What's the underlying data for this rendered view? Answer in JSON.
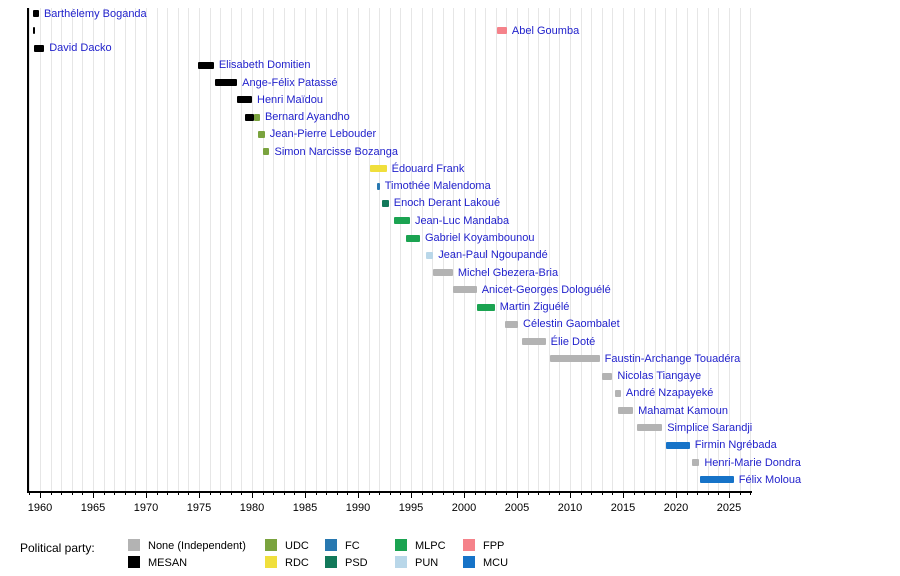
{
  "chart_data": {
    "type": "timeline",
    "title": "",
    "x_axis": {
      "min": 1958.8,
      "max": 2027.2,
      "minor_tick_interval": 1,
      "major_tick_interval": 5,
      "tick_labels": [
        "1960",
        "1965",
        "1970",
        "1975",
        "1980",
        "1985",
        "1990",
        "1995",
        "2000",
        "2005",
        "2010",
        "2015",
        "2020",
        "2025"
      ]
    },
    "grid": "vertical-yearly",
    "legend_position": "bottom",
    "parties": {
      "none": {
        "label": "None (Independent)",
        "color": "#b3b3b3"
      },
      "MESAN": {
        "label": "MESAN",
        "color": "#000000"
      },
      "UDC": {
        "label": "UDC",
        "color": "#7aa33e"
      },
      "RDC": {
        "label": "RDC",
        "color": "#f0df3c"
      },
      "FC": {
        "label": "FC",
        "color": "#2878b0"
      },
      "PSD": {
        "label": "PSD",
        "color": "#12795a"
      },
      "MLPC": {
        "label": "MLPC",
        "color": "#1ba351"
      },
      "PUN": {
        "label": "PUN",
        "color": "#b9d7e9"
      },
      "FPP": {
        "label": "FPP",
        "color": "#f5828a"
      },
      "MCU": {
        "label": "MCU",
        "color": "#1673c8"
      }
    },
    "people": [
      {
        "name": "Barthélemy Boganda",
        "terms": [
          {
            "start": 1959.35,
            "end": 1959.9,
            "party": "MESAN"
          }
        ]
      },
      {
        "name": "Abel Goumba",
        "terms": [
          {
            "start": 1959.35,
            "end": 1959.55,
            "party": "MESAN"
          },
          {
            "start": 2003.1,
            "end": 2004.05,
            "party": "FPP"
          }
        ]
      },
      {
        "name": "David Dacko",
        "terms": [
          {
            "start": 1959.45,
            "end": 1960.4,
            "party": "MESAN"
          }
        ]
      },
      {
        "name": "Elisabeth Domitien",
        "terms": [
          {
            "start": 1974.9,
            "end": 1976.4,
            "party": "MESAN"
          }
        ]
      },
      {
        "name": "Ange-Félix Patassé",
        "terms": [
          {
            "start": 1976.55,
            "end": 1978.6,
            "party": "MESAN"
          }
        ]
      },
      {
        "name": "Henri Maïdou",
        "terms": [
          {
            "start": 1978.6,
            "end": 1980.0,
            "party": "MESAN"
          }
        ]
      },
      {
        "name": "Bernard Ayandho",
        "terms": [
          {
            "start": 1979.35,
            "end": 1980.2,
            "party": "MESAN"
          },
          {
            "start": 1980.2,
            "end": 1980.75,
            "party": "UDC"
          }
        ]
      },
      {
        "name": "Jean-Pierre Lebouder",
        "terms": [
          {
            "start": 1980.6,
            "end": 1981.2,
            "party": "UDC"
          }
        ]
      },
      {
        "name": "Simon Narcisse Bozanga",
        "terms": [
          {
            "start": 1981.05,
            "end": 1981.65,
            "party": "UDC"
          }
        ]
      },
      {
        "name": "Édouard Frank",
        "terms": [
          {
            "start": 1991.1,
            "end": 1992.7,
            "party": "RDC"
          }
        ]
      },
      {
        "name": "Timothée Malendoma",
        "terms": [
          {
            "start": 1991.8,
            "end": 1992.05,
            "party": "FC"
          }
        ]
      },
      {
        "name": "Enoch Derant Lakoué",
        "terms": [
          {
            "start": 1992.25,
            "end": 1992.9,
            "party": "PSD"
          }
        ]
      },
      {
        "name": "Jean-Luc Mandaba",
        "terms": [
          {
            "start": 1993.4,
            "end": 1994.9,
            "party": "MLPC"
          }
        ]
      },
      {
        "name": "Gabriel Koyambounou",
        "terms": [
          {
            "start": 1994.5,
            "end": 1995.85,
            "party": "MLPC"
          }
        ]
      },
      {
        "name": "Jean-Paul Ngoupandé",
        "terms": [
          {
            "start": 1996.4,
            "end": 1997.1,
            "party": "PUN"
          }
        ]
      },
      {
        "name": "Michel Gbezera-Bria",
        "terms": [
          {
            "start": 1997.05,
            "end": 1998.95,
            "party": "none"
          }
        ]
      },
      {
        "name": "Anicet-Georges Dologuélé",
        "terms": [
          {
            "start": 1999.0,
            "end": 2001.2,
            "party": "none"
          }
        ]
      },
      {
        "name": "Martin Ziguélé",
        "terms": [
          {
            "start": 2001.2,
            "end": 2002.9,
            "party": "MLPC"
          }
        ]
      },
      {
        "name": "Célestin Gaombalet",
        "terms": [
          {
            "start": 2003.9,
            "end": 2005.1,
            "party": "none"
          }
        ]
      },
      {
        "name": "Élie Doté",
        "terms": [
          {
            "start": 2005.5,
            "end": 2007.7,
            "party": "none"
          }
        ]
      },
      {
        "name": "Faustin-Archange Touadéra",
        "terms": [
          {
            "start": 2008.1,
            "end": 2012.8,
            "party": "none"
          }
        ]
      },
      {
        "name": "Nicolas Tiangaye",
        "terms": [
          {
            "start": 2013.0,
            "end": 2014.0,
            "party": "none"
          }
        ]
      },
      {
        "name": "André Nzapayeké",
        "terms": [
          {
            "start": 2014.2,
            "end": 2014.8,
            "party": "none"
          }
        ]
      },
      {
        "name": "Mahamat Kamoun",
        "terms": [
          {
            "start": 2014.55,
            "end": 2015.95,
            "party": "none"
          }
        ]
      },
      {
        "name": "Simplice Sarandji",
        "terms": [
          {
            "start": 2016.3,
            "end": 2018.7,
            "party": "none"
          }
        ]
      },
      {
        "name": "Firmin Ngrébada",
        "terms": [
          {
            "start": 2019.05,
            "end": 2021.3,
            "party": "MCU"
          }
        ]
      },
      {
        "name": "Henri-Marie Dondra",
        "terms": [
          {
            "start": 2021.5,
            "end": 2022.2,
            "party": "none"
          }
        ]
      },
      {
        "name": "Félix Moloua",
        "terms": [
          {
            "start": 2022.3,
            "end": 2025.45,
            "party": "MCU"
          }
        ]
      }
    ]
  },
  "legend": {
    "title": "Political party:",
    "columns": [
      [
        "none",
        "MESAN"
      ],
      [
        "UDC",
        "RDC"
      ],
      [
        "FC",
        "PSD"
      ],
      [
        "MLPC",
        "PUN"
      ],
      [
        "FPP",
        "MCU"
      ]
    ]
  }
}
